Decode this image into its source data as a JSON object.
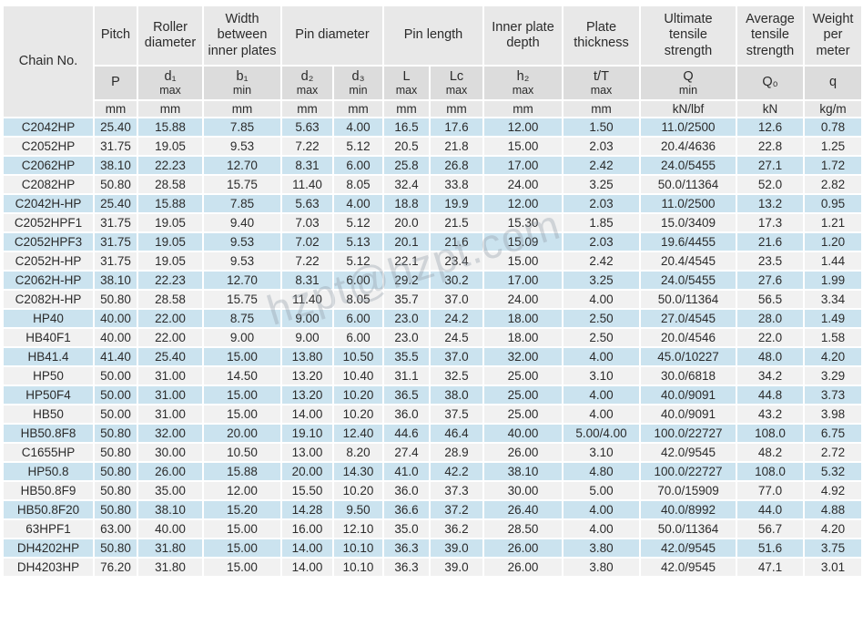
{
  "watermark": {
    "text": "hzpt@hzpt.com"
  },
  "ghost_label": "Chain No.",
  "colors": {
    "row_blue": "#cbe3ef",
    "row_gray": "#f1f1f1",
    "header_gray": "#e8e8e8",
    "symbol_gray": "#dcdcdc",
    "border_white": "#ffffff",
    "text": "#2b2b2b"
  },
  "header": {
    "chain_no": "Chain No.",
    "groups": [
      {
        "label": "Pitch"
      },
      {
        "label": "Roller diameter"
      },
      {
        "label": "Width between inner plates"
      },
      {
        "label": "Pin diameter"
      },
      {
        "label": "Pin length"
      },
      {
        "label": "Inner plate depth"
      },
      {
        "label": "Plate thickness"
      },
      {
        "label": "Ultimate tensile strength"
      },
      {
        "label": "Average tensile strength"
      },
      {
        "label": "Weight per meter"
      }
    ],
    "symbols": [
      {
        "sym": "P",
        "qual": ""
      },
      {
        "sym": "d₁",
        "qual": "max"
      },
      {
        "sym": "b₁",
        "qual": "min"
      },
      {
        "sym": "d₂",
        "qual": "max"
      },
      {
        "sym": "d₃",
        "qual": "min"
      },
      {
        "sym": "L",
        "qual": "max"
      },
      {
        "sym": "Lc",
        "qual": "max"
      },
      {
        "sym": "h₂",
        "qual": "max"
      },
      {
        "sym": "t/T",
        "qual": "max"
      },
      {
        "sym": "Q",
        "qual": "min"
      },
      {
        "sym": "Q₀",
        "qual": ""
      },
      {
        "sym": "q",
        "qual": ""
      }
    ],
    "units": [
      "mm",
      "mm",
      "mm",
      "mm",
      "mm",
      "mm",
      "mm",
      "mm",
      "mm",
      "kN/lbf",
      "kN",
      "kg/m"
    ]
  },
  "rows": [
    [
      "C2042HP",
      "25.40",
      "15.88",
      "7.85",
      "5.63",
      "4.00",
      "16.5",
      "17.6",
      "12.00",
      "1.50",
      "11.0/2500",
      "12.6",
      "0.78"
    ],
    [
      "C2052HP",
      "31.75",
      "19.05",
      "9.53",
      "7.22",
      "5.12",
      "20.5",
      "21.8",
      "15.00",
      "2.03",
      "20.4/4636",
      "22.8",
      "1.25"
    ],
    [
      "C2062HP",
      "38.10",
      "22.23",
      "12.70",
      "8.31",
      "6.00",
      "25.8",
      "26.8",
      "17.00",
      "2.42",
      "24.0/5455",
      "27.1",
      "1.72"
    ],
    [
      "C2082HP",
      "50.80",
      "28.58",
      "15.75",
      "11.40",
      "8.05",
      "32.4",
      "33.8",
      "24.00",
      "3.25",
      "50.0/11364",
      "52.0",
      "2.82"
    ],
    [
      "C2042H-HP",
      "25.40",
      "15.88",
      "7.85",
      "5.63",
      "4.00",
      "18.8",
      "19.9",
      "12.00",
      "2.03",
      "11.0/2500",
      "13.2",
      "0.95"
    ],
    [
      "C2052HPF1",
      "31.75",
      "19.05",
      "9.40",
      "7.03",
      "5.12",
      "20.0",
      "21.5",
      "15.30",
      "1.85",
      "15.0/3409",
      "17.3",
      "1.21"
    ],
    [
      "C2052HPF3",
      "31.75",
      "19.05",
      "9.53",
      "7.02",
      "5.13",
      "20.1",
      "21.6",
      "15.09",
      "2.03",
      "19.6/4455",
      "21.6",
      "1.20"
    ],
    [
      "C2052H-HP",
      "31.75",
      "19.05",
      "9.53",
      "7.22",
      "5.12",
      "22.1",
      "23.4",
      "15.00",
      "2.42",
      "20.4/4545",
      "23.5",
      "1.44"
    ],
    [
      "C2062H-HP",
      "38.10",
      "22.23",
      "12.70",
      "8.31",
      "6.00",
      "29.2",
      "30.2",
      "17.00",
      "3.25",
      "24.0/5455",
      "27.6",
      "1.99"
    ],
    [
      "C2082H-HP",
      "50.80",
      "28.58",
      "15.75",
      "11.40",
      "8.05",
      "35.7",
      "37.0",
      "24.00",
      "4.00",
      "50.0/11364",
      "56.5",
      "3.34"
    ],
    [
      "HP40",
      "40.00",
      "22.00",
      "8.75",
      "9.00",
      "6.00",
      "23.0",
      "24.2",
      "18.00",
      "2.50",
      "27.0/4545",
      "28.0",
      "1.49"
    ],
    [
      "HB40F1",
      "40.00",
      "22.00",
      "9.00",
      "9.00",
      "6.00",
      "23.0",
      "24.5",
      "18.00",
      "2.50",
      "20.0/4546",
      "22.0",
      "1.58"
    ],
    [
      "HB41.4",
      "41.40",
      "25.40",
      "15.00",
      "13.80",
      "10.50",
      "35.5",
      "37.0",
      "32.00",
      "4.00",
      "45.0/10227",
      "48.0",
      "4.20"
    ],
    [
      "HP50",
      "50.00",
      "31.00",
      "14.50",
      "13.20",
      "10.40",
      "31.1",
      "32.5",
      "25.00",
      "3.10",
      "30.0/6818",
      "34.2",
      "3.29"
    ],
    [
      "HP50F4",
      "50.00",
      "31.00",
      "15.00",
      "13.20",
      "10.20",
      "36.5",
      "38.0",
      "25.00",
      "4.00",
      "40.0/9091",
      "44.8",
      "3.73"
    ],
    [
      "HB50",
      "50.00",
      "31.00",
      "15.00",
      "14.00",
      "10.20",
      "36.0",
      "37.5",
      "25.00",
      "4.00",
      "40.0/9091",
      "43.2",
      "3.98"
    ],
    [
      "HB50.8F8",
      "50.80",
      "32.00",
      "20.00",
      "19.10",
      "12.40",
      "44.6",
      "46.4",
      "40.00",
      "5.00/4.00",
      "100.0/22727",
      "108.0",
      "6.75"
    ],
    [
      "C1655HP",
      "50.80",
      "30.00",
      "10.50",
      "13.00",
      "8.20",
      "27.4",
      "28.9",
      "26.00",
      "3.10",
      "42.0/9545",
      "48.2",
      "2.72"
    ],
    [
      "HP50.8",
      "50.80",
      "26.00",
      "15.88",
      "20.00",
      "14.30",
      "41.0",
      "42.2",
      "38.10",
      "4.80",
      "100.0/22727",
      "108.0",
      "5.32"
    ],
    [
      "HB50.8F9",
      "50.80",
      "35.00",
      "12.00",
      "15.50",
      "10.20",
      "36.0",
      "37.3",
      "30.00",
      "5.00",
      "70.0/15909",
      "77.0",
      "4.92"
    ],
    [
      "HB50.8F20",
      "50.80",
      "38.10",
      "15.20",
      "14.28",
      "9.50",
      "36.6",
      "37.2",
      "26.40",
      "4.00",
      "40.0/8992",
      "44.0",
      "4.88"
    ],
    [
      "63HPF1",
      "63.00",
      "40.00",
      "15.00",
      "16.00",
      "12.10",
      "35.0",
      "36.2",
      "28.50",
      "4.00",
      "50.0/11364",
      "56.7",
      "4.20"
    ],
    [
      "DH4202HP",
      "50.80",
      "31.80",
      "15.00",
      "14.00",
      "10.10",
      "36.3",
      "39.0",
      "26.00",
      "3.80",
      "42.0/9545",
      "51.6",
      "3.75"
    ],
    [
      "DH4203HP",
      "76.20",
      "31.80",
      "15.00",
      "14.00",
      "10.10",
      "36.3",
      "39.0",
      "26.00",
      "3.80",
      "42.0/9545",
      "47.1",
      "3.01"
    ]
  ]
}
